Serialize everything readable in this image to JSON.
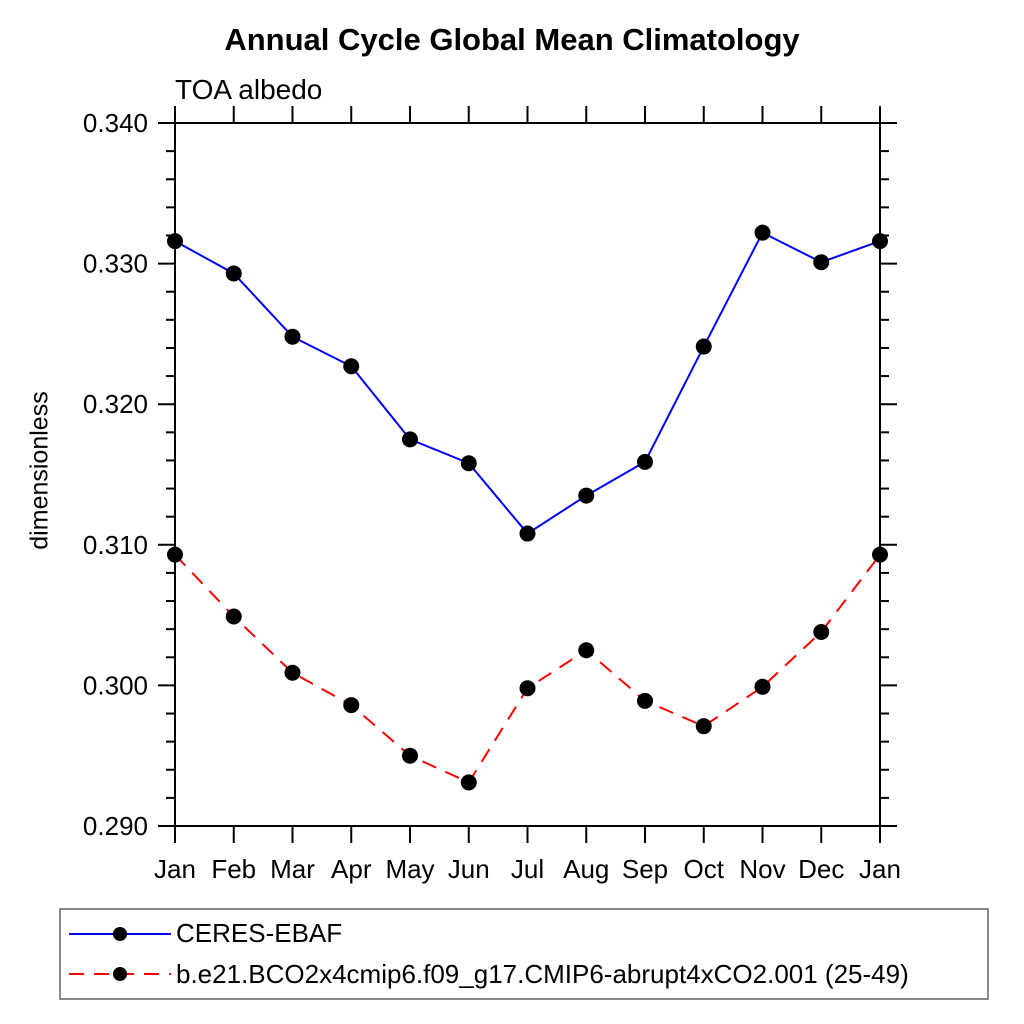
{
  "page": {
    "background_color": "#ffffff",
    "text_color": "#000000"
  },
  "chart_data": {
    "type": "line",
    "title": "Annual Cycle Global Mean Climatology",
    "subtitle": "TOA albedo",
    "xlabel": "",
    "ylabel": "dimensionless",
    "categories": [
      "Jan",
      "Feb",
      "Mar",
      "Apr",
      "May",
      "Jun",
      "Jul",
      "Aug",
      "Sep",
      "Oct",
      "Nov",
      "Dec",
      "Jan"
    ],
    "ylim": [
      0.29,
      0.34
    ],
    "ytick_major_interval": 0.01,
    "ytick_minor_interval": 0.002,
    "ytick_label_format_decimals": 3,
    "grid": false,
    "axis_color": "#000000",
    "legend_position": "bottom-left-box",
    "legend_border_color": "#888888",
    "marker_color": "#000000",
    "series": [
      {
        "name": "CERES-EBAF",
        "color": "#0000ff",
        "line_style": "solid",
        "marker": "filled-circle",
        "values": [
          0.3316,
          0.3293,
          0.3248,
          0.3227,
          0.3175,
          0.3158,
          0.3108,
          0.3135,
          0.3159,
          0.3241,
          0.3322,
          0.3301,
          0.3316
        ]
      },
      {
        "name": "b.e21.BCO2x4cmip6.f09_g17.CMIP6-abrupt4xCO2.001 (25-49)",
        "color": "#ff0000",
        "line_style": "dashed",
        "marker": "filled-circle",
        "values": [
          0.3093,
          0.3049,
          0.3009,
          0.2986,
          0.295,
          0.2931,
          0.2998,
          0.3025,
          0.2989,
          0.2971,
          0.2999,
          0.3038,
          0.3093
        ]
      }
    ]
  }
}
